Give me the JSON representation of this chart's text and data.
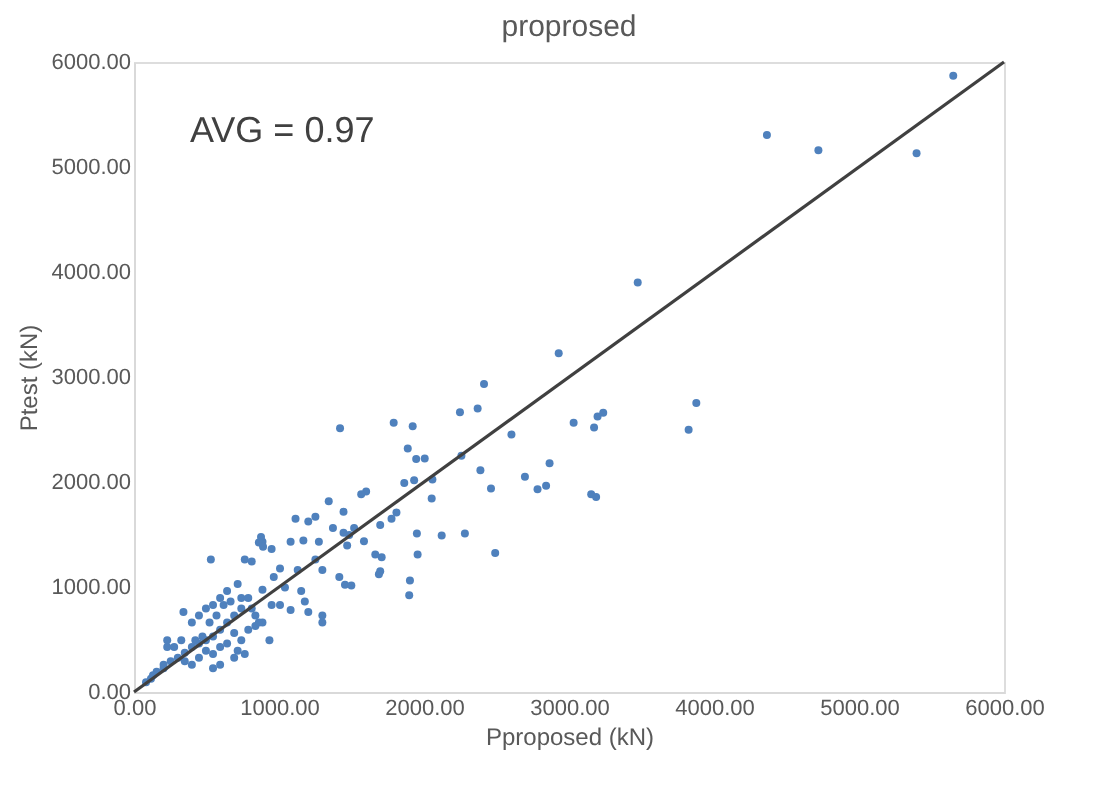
{
  "chart_data": {
    "type": "scatter",
    "title": "proprosed",
    "xlabel": "Pproposed (kN)",
    "ylabel": "Ptest (kN)",
    "annotations": [
      "AVG = 0.97"
    ],
    "xlim": [
      0,
      6000
    ],
    "ylim": [
      0,
      6000
    ],
    "xticks": [
      {
        "value": 0,
        "label": "0.00"
      },
      {
        "value": 1000,
        "label": "1000.00"
      },
      {
        "value": 2000,
        "label": "2000.00"
      },
      {
        "value": 3000,
        "label": "3000.00"
      },
      {
        "value": 4000,
        "label": "4000.00"
      },
      {
        "value": 5000,
        "label": "5000.00"
      },
      {
        "value": 6000,
        "label": "6000.00"
      }
    ],
    "yticks": [
      {
        "value": 0,
        "label": "0.00"
      },
      {
        "value": 1000,
        "label": "1000.00"
      },
      {
        "value": 2000,
        "label": "2000.00"
      },
      {
        "value": 3000,
        "label": "3000.00"
      },
      {
        "value": 4000,
        "label": "4000.00"
      },
      {
        "value": 5000,
        "label": "5000.00"
      },
      {
        "value": 6000,
        "label": "6000.00"
      }
    ],
    "grid": false,
    "legend": false,
    "marker": "circle",
    "series": [
      {
        "color": "#4f81bd",
        "x": [
          5650,
          4365,
          4720,
          5397,
          3474,
          2929,
          2414,
          3878,
          3825,
          3236,
          3197,
          3032,
          3173,
          2603,
          2370,
          2248,
          1791,
          1922,
          1421,
          1888,
          1946,
          2005,
          2258,
          2866,
          2389,
          2696,
          2462,
          2783,
          2842,
          3153,
          3187,
          2058,
          1864,
          1932,
          2053,
          1601,
          1567,
          2122,
          2282,
          2491,
          1903,
          1898,
          1951,
          1956,
          1776,
          1810,
          1698,
          1708,
          1698,
          1689,
          1343,
          1445,
          1114,
          1202,
          1251,
          1372,
          1484,
          1470,
          1445,
          1586,
          1518,
          1664,
          1455,
          1499,
          1416,
          1080,
          1168,
          1275,
          1251,
          1299,
          1129,
          1007,
          964,
          1041,
          1153,
          1178,
          1299,
          1299,
          1080,
          1202,
          949,
          1007,
          886,
          886,
          530,
          876,
          861,
          890,
          764,
          812,
          949,
          715,
          740,
          934,
          837,
          886,
          341,
          229,
          229,
          117,
          156,
          204,
          253,
          302,
          350,
          399,
          448,
          496,
          545,
          594,
          642,
          691,
          740,
          788,
          545,
          594,
          642,
          399,
          448,
          496,
          691,
          740,
          788,
          496,
          545,
          594,
          350,
          399,
          448,
          642,
          715,
          764,
          837,
          861,
          812,
          277,
          326,
          83,
          131,
          204,
          521,
          569,
          618,
          666,
          472,
          423,
          594,
          545,
          691
        ],
        "values": [
          5870,
          5305,
          5160,
          5130,
          3900,
          3226,
          2933,
          2752,
          2498,
          2659,
          2625,
          2565,
          2518,
          2452,
          2699,
          2665,
          2565,
          2532,
          2512,
          2318,
          2218,
          2224,
          2251,
          2178,
          2111,
          2051,
          1937,
          1930,
          1964,
          1884,
          1857,
          2024,
          1991,
          2017,
          1844,
          1910,
          1884,
          1490,
          1510,
          1323,
          1062,
          922,
          1510,
          1309,
          1650,
          1710,
          1590,
          1283,
          1149,
          1122,
          1817,
          1717,
          1650,
          1623,
          1670,
          1563,
          1496,
          1396,
          1517,
          1436,
          1563,
          1309,
          1022,
          1015,
          1096,
          1430,
          1443,
          1430,
          1263,
          1162,
          1162,
          1176,
          1096,
          995,
          962,
          862,
          728,
          661,
          782,
          762,
          829,
          829,
          975,
          1430,
          1262,
          1476,
          1423,
          1383,
          1263,
          1242,
          1363,
          1029,
          895,
          494,
          628,
          661,
          762,
          494,
          428,
          127,
          194,
          260,
          294,
          327,
          374,
          428,
          461,
          494,
          528,
          594,
          661,
          728,
          795,
          895,
          829,
          895,
          962,
          661,
          728,
          795,
          561,
          494,
          594,
          394,
          361,
          428,
          294,
          260,
          327,
          461,
          394,
          361,
          728,
          661,
          795,
          428,
          494,
          94,
          160,
          227,
          661,
          728,
          829,
          862,
          528,
          494,
          260,
          227,
          327
        ]
      },
      {
        "type": "line",
        "color": "#404040",
        "x": [
          0,
          6000
        ],
        "values": [
          0,
          6000
        ],
        "marker": "none",
        "line_style": "solid"
      }
    ]
  }
}
